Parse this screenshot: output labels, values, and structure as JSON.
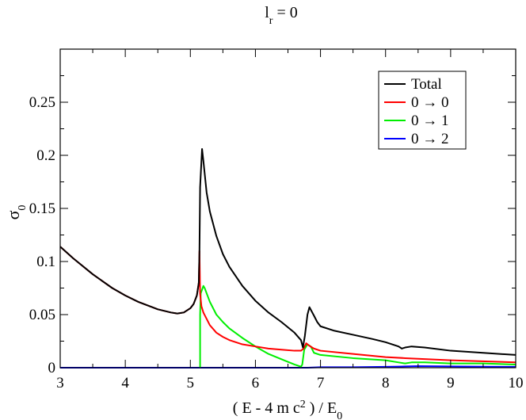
{
  "chart_data": {
    "type": "line",
    "title": {
      "main": "l",
      "sub": "r",
      "rest": " = 0"
    },
    "xlabel": {
      "pre": "( E - 4 m c",
      "sup": "2",
      "mid": " ) / E",
      "sub": "0"
    },
    "ylabel": {
      "main": "σ",
      "sub": "0"
    },
    "xlim": [
      3,
      10
    ],
    "ylim": [
      0,
      0.3
    ],
    "xticks": [
      "3",
      "4",
      "5",
      "6",
      "7",
      "8",
      "9",
      "10"
    ],
    "yticks": [
      "0",
      "0.05",
      "0.1",
      "0.15",
      "0.2",
      "0.25"
    ],
    "legend_position": "top-right",
    "colors": {
      "total": "#000000",
      "s00": "#ff0000",
      "s01": "#00ee00",
      "s02": "#0000ff"
    },
    "series": [
      {
        "name": "Total",
        "x": [
          3.0,
          3.2,
          3.5,
          3.8,
          4.0,
          4.2,
          4.5,
          4.7,
          4.8,
          4.9,
          5.0,
          5.05,
          5.1,
          5.13,
          5.14,
          5.15,
          5.18,
          5.2,
          5.25,
          5.3,
          5.4,
          5.5,
          5.6,
          5.8,
          6.0,
          6.2,
          6.4,
          6.6,
          6.7,
          6.73,
          6.76,
          6.8,
          6.83,
          6.9,
          6.95,
          7.0,
          7.2,
          7.5,
          7.8,
          8.0,
          8.2,
          8.25,
          8.3,
          8.4,
          8.6,
          9.0,
          9.5,
          10.0
        ],
        "y": [
          0.114,
          0.103,
          0.088,
          0.075,
          0.068,
          0.062,
          0.055,
          0.052,
          0.051,
          0.052,
          0.056,
          0.06,
          0.068,
          0.08,
          0.11,
          0.17,
          0.206,
          0.195,
          0.165,
          0.147,
          0.124,
          0.107,
          0.095,
          0.077,
          0.063,
          0.052,
          0.043,
          0.033,
          0.026,
          0.019,
          0.03,
          0.05,
          0.057,
          0.049,
          0.043,
          0.039,
          0.035,
          0.031,
          0.027,
          0.024,
          0.02,
          0.018,
          0.019,
          0.02,
          0.019,
          0.016,
          0.014,
          0.012
        ]
      },
      {
        "name": "0 → 0",
        "x": [
          3.0,
          3.2,
          3.5,
          3.8,
          4.0,
          4.2,
          4.5,
          4.7,
          4.8,
          4.9,
          5.0,
          5.05,
          5.1,
          5.13,
          5.14,
          5.15,
          5.17,
          5.2,
          5.3,
          5.4,
          5.5,
          5.6,
          5.8,
          6.0,
          6.2,
          6.4,
          6.6,
          6.7,
          6.74,
          6.78,
          6.82,
          6.9,
          7.0,
          7.5,
          8.0,
          8.3,
          9.0,
          10.0
        ],
        "y": [
          0.114,
          0.103,
          0.088,
          0.075,
          0.068,
          0.062,
          0.055,
          0.052,
          0.051,
          0.052,
          0.056,
          0.06,
          0.068,
          0.08,
          0.11,
          0.07,
          0.058,
          0.052,
          0.04,
          0.033,
          0.029,
          0.026,
          0.022,
          0.02,
          0.018,
          0.017,
          0.016,
          0.016,
          0.018,
          0.023,
          0.021,
          0.018,
          0.016,
          0.013,
          0.01,
          0.009,
          0.007,
          0.005
        ]
      },
      {
        "name": "0 → 1",
        "x": [
          5.15,
          5.15,
          5.16,
          5.2,
          5.22,
          5.3,
          5.4,
          5.5,
          5.6,
          5.8,
          6.0,
          6.2,
          6.4,
          6.6,
          6.7,
          6.72,
          6.75,
          6.8,
          6.85,
          6.9,
          7.0,
          7.5,
          8.0,
          8.2,
          8.3,
          8.4,
          8.6,
          9.0,
          9.5,
          10.0
        ],
        "y": [
          0.0,
          0.05,
          0.07,
          0.077,
          0.075,
          0.062,
          0.05,
          0.043,
          0.037,
          0.028,
          0.02,
          0.013,
          0.008,
          0.003,
          0.001,
          0.003,
          0.017,
          0.022,
          0.02,
          0.014,
          0.012,
          0.009,
          0.007,
          0.005,
          0.004,
          0.005,
          0.005,
          0.004,
          0.004,
          0.003
        ]
      },
      {
        "name": "0 → 2",
        "x": [
          3.0,
          6.8,
          7.0,
          7.5,
          8.0,
          8.3,
          8.5,
          9.0,
          10.0
        ],
        "y": [
          0.0,
          0.0,
          0.0005,
          0.0005,
          0.0008,
          0.0012,
          0.0015,
          0.0012,
          0.0008
        ]
      }
    ]
  }
}
